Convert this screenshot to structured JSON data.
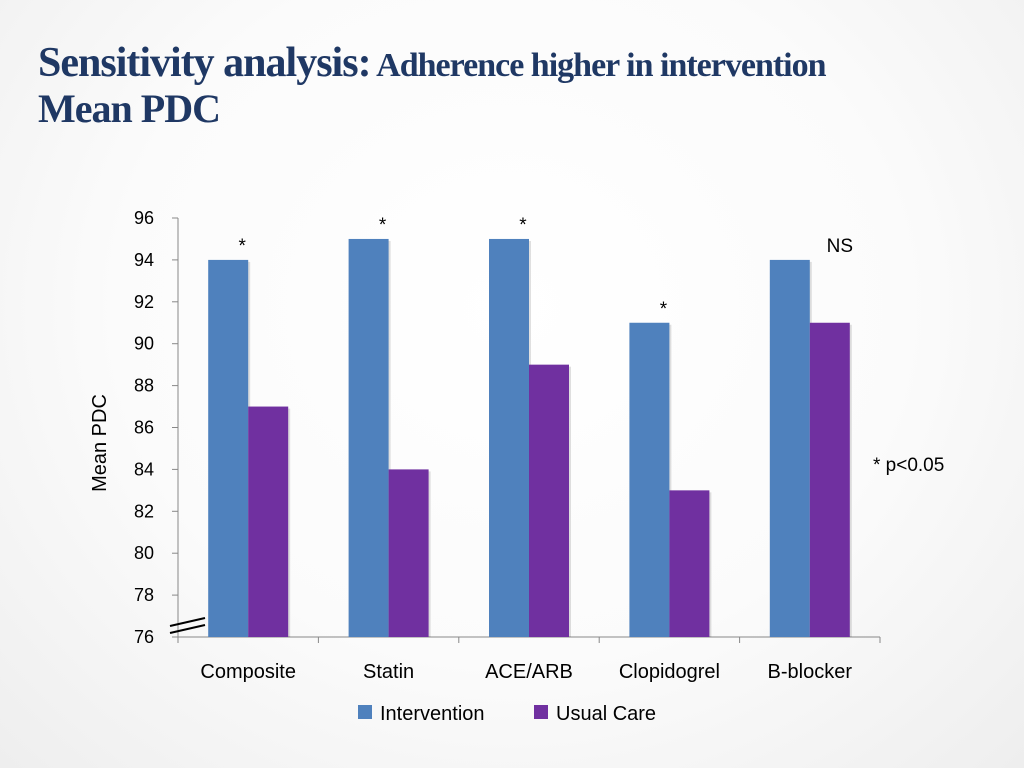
{
  "slide": {
    "title_main": "Sensitivity analysis:",
    "title_sub": " Adherence higher in intervention",
    "title_line2": "Mean PDC"
  },
  "chart_data": {
    "type": "bar",
    "categories": [
      "Composite",
      "Statin",
      "ACE/ARB",
      "Clopidogrel",
      "B-blocker"
    ],
    "series": [
      {
        "name": "Intervention",
        "values": [
          94,
          95,
          95,
          91,
          94
        ],
        "color": "#4f81bd"
      },
      {
        "name": "Usual Care",
        "values": [
          87,
          84,
          89,
          83,
          91
        ],
        "color": "#7030a0"
      }
    ],
    "ylabel": "Mean PDC",
    "ylim": [
      76,
      96
    ],
    "yticks": [
      76,
      78,
      80,
      82,
      84,
      86,
      88,
      90,
      92,
      94,
      96
    ],
    "significance": [
      "*",
      "*",
      "*",
      "*",
      "NS"
    ],
    "note": "* p<0.05",
    "legend": "bottom",
    "axis_break": true
  }
}
